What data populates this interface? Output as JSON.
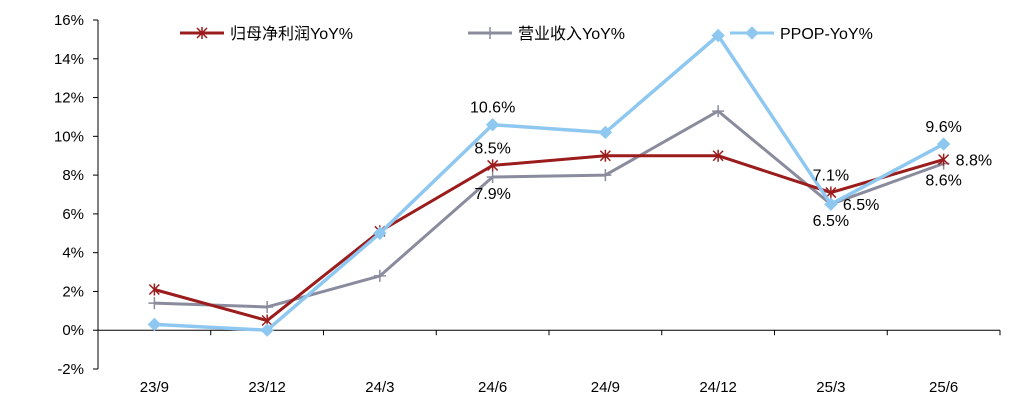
{
  "chart_data": {
    "type": "line",
    "categories": [
      "23/9",
      "23/12",
      "24/3",
      "24/6",
      "24/9",
      "24/12",
      "25/3",
      "25/6"
    ],
    "yticks": [
      "16%",
      "14%",
      "12%",
      "10%",
      "8%",
      "6%",
      "4%",
      "2%",
      "0%",
      "-2%"
    ],
    "ylim": [
      -2,
      16
    ],
    "grid": false,
    "legend_position": "top",
    "series": [
      {
        "name": "归母净利润YoY%",
        "color": "#9b1c1c",
        "marker": "asterisk",
        "values": [
          2.1,
          0.5,
          5.1,
          8.5,
          9.0,
          9.0,
          7.1,
          8.8
        ]
      },
      {
        "name": "营业收入YoY%",
        "color": "#8a8c9e",
        "marker": "plus",
        "values": [
          1.4,
          1.2,
          2.8,
          7.9,
          8.0,
          11.3,
          6.5,
          8.6
        ]
      },
      {
        "name": "PPOP-YoY%",
        "color": "#8ec8f0",
        "marker": "diamond",
        "values": [
          0.3,
          0.0,
          5.0,
          10.6,
          10.2,
          15.2,
          6.5,
          9.6
        ]
      }
    ],
    "annotations": [
      {
        "text": "10.6%",
        "series": 2,
        "index": 3,
        "pos": "above"
      },
      {
        "text": "8.5%",
        "series": 0,
        "index": 3,
        "pos": "above"
      },
      {
        "text": "7.9%",
        "series": 1,
        "index": 3,
        "pos": "below"
      },
      {
        "text": "7.1%",
        "series": 0,
        "index": 6,
        "pos": "above"
      },
      {
        "text": "6.5%",
        "series": 2,
        "index": 6,
        "pos": "below"
      },
      {
        "text": "6.5%",
        "series": 1,
        "index": 6,
        "pos": "right"
      },
      {
        "text": "9.6%",
        "series": 2,
        "index": 7,
        "pos": "above"
      },
      {
        "text": "8.8%",
        "series": 0,
        "index": 7,
        "pos": "right"
      },
      {
        "text": "8.6%",
        "series": 1,
        "index": 7,
        "pos": "below"
      }
    ]
  }
}
